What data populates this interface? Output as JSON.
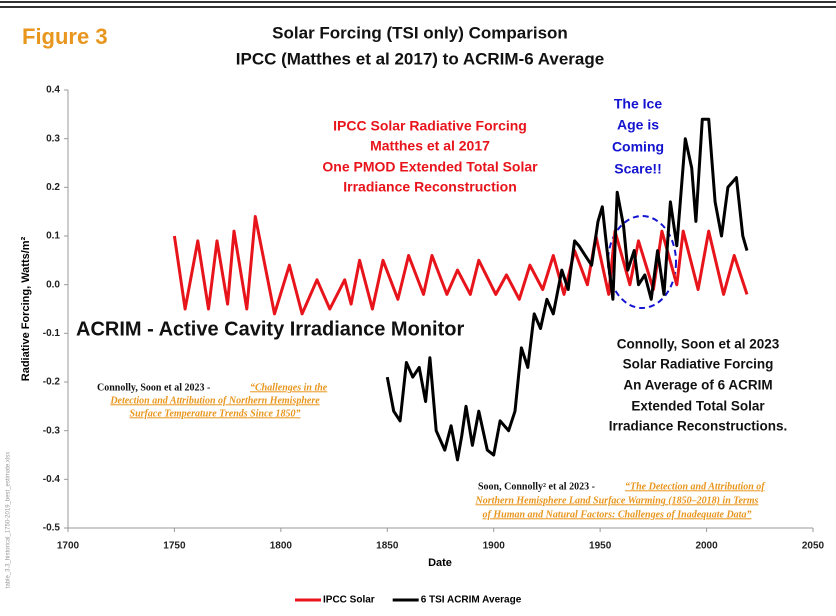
{
  "figure_label": "Figure 3",
  "chart_data": {
    "type": "line",
    "title": [
      "Solar Forcing (TSI only) Comparison",
      "IPCC (Matthes et al 2017) to ACRIM-6 Average"
    ],
    "x_label": "Date",
    "y_label": "Radiative Forcing, Watts/m²",
    "xlim": [
      1700,
      2050
    ],
    "xticks": [
      1700,
      1750,
      1800,
      1850,
      1900,
      1950,
      2000,
      2050
    ],
    "ylim": [
      -0.5,
      0.4
    ],
    "yticks": [
      0.4,
      0.3,
      0.2,
      0.1,
      {
        "value": 0,
        "label": "0.0"
      },
      -0.1,
      -0.2,
      -0.3,
      -0.4,
      -0.5
    ],
    "legend": "bottom",
    "series": [
      {
        "name": "IPCC Solar",
        "color": "#e8141b",
        "x": [
          1750,
          1755,
          1761,
          1766,
          1770,
          1775,
          1778,
          1784,
          1788,
          1797,
          1804,
          1810,
          1817,
          1823,
          1830,
          1833,
          1837,
          1843,
          1848,
          1855,
          1860,
          1867,
          1871,
          1878,
          1883,
          1889,
          1893,
          1901,
          1906,
          1912,
          1917,
          1923,
          1928,
          1933,
          1938,
          1944,
          1948,
          1954,
          1957,
          1964,
          1968,
          1975,
          1979,
          1986,
          1989,
          1996,
          2001,
          2008,
          2013,
          2019
        ],
        "values": [
          0.1,
          -0.05,
          0.09,
          -0.05,
          0.09,
          -0.04,
          0.11,
          -0.05,
          0.14,
          -0.06,
          0.04,
          -0.06,
          0.01,
          -0.05,
          0.01,
          -0.04,
          0.05,
          -0.05,
          0.05,
          -0.03,
          0.06,
          -0.02,
          0.06,
          -0.02,
          0.03,
          -0.02,
          0.05,
          -0.02,
          0.02,
          -0.03,
          0.04,
          -0.01,
          0.06,
          -0.02,
          0.07,
          0.0,
          0.1,
          -0.02,
          0.11,
          0.0,
          0.09,
          -0.01,
          0.11,
          0.0,
          0.11,
          -0.01,
          0.11,
          -0.02,
          0.06,
          -0.02
        ]
      },
      {
        "name": "6 TSI ACRIM Average",
        "color": "#000000",
        "x": [
          1850,
          1853,
          1856,
          1859,
          1862,
          1865,
          1868,
          1870,
          1873,
          1877,
          1880,
          1883,
          1885,
          1887,
          1890,
          1893,
          1897,
          1900,
          1903,
          1907,
          1910,
          1913,
          1916,
          1919,
          1922,
          1925,
          1928,
          1932,
          1935,
          1938,
          1940,
          1943,
          1946,
          1949,
          1951,
          1954,
          1956,
          1958,
          1961,
          1963,
          1966,
          1968,
          1971,
          1974,
          1977,
          1980,
          1983,
          1986,
          1990,
          1993,
          1995,
          1998,
          2001,
          2004,
          2007,
          2010,
          2014,
          2017,
          2019
        ],
        "values": [
          -0.19,
          -0.26,
          -0.28,
          -0.16,
          -0.19,
          -0.17,
          -0.24,
          -0.15,
          -0.3,
          -0.34,
          -0.29,
          -0.36,
          -0.31,
          -0.25,
          -0.33,
          -0.26,
          -0.34,
          -0.35,
          -0.28,
          -0.3,
          -0.26,
          -0.13,
          -0.17,
          -0.06,
          -0.09,
          -0.03,
          -0.06,
          0.03,
          -0.01,
          0.09,
          0.08,
          0.06,
          0.04,
          0.13,
          0.16,
          0.04,
          -0.03,
          0.19,
          0.12,
          0.03,
          0.07,
          0.0,
          0.02,
          -0.03,
          0.07,
          -0.02,
          0.17,
          0.08,
          0.3,
          0.24,
          0.13,
          0.34,
          0.34,
          0.17,
          0.1,
          0.2,
          0.22,
          0.1,
          0.07
        ]
      }
    ],
    "annotations": {
      "ipcc": [
        "IPCC Solar Radiative Forcing",
        "Matthes et al 2017",
        "One PMOD Extended Total Solar",
        "Irradiance Reconstruction"
      ],
      "ice_age": [
        "The Ice",
        "Age is",
        "Coming",
        "Scare!!"
      ],
      "acrim": "ACRIM - Active Cavity Irradiance Monitor",
      "connolly": [
        "Connolly, Soon et al 2023",
        "Solar Radiative Forcing",
        "An Average of 6 ACRIM",
        "Extended Total Solar",
        "Irradiance Reconstructions."
      ],
      "citation_1": {
        "prefix": "Connolly, Soon et al 2023 - ",
        "link": [
          "“Challenges in the",
          "Detection and Attribution of Northern Hemisphere",
          "Surface Temperature Trends Since 1850”"
        ]
      },
      "citation_2": {
        "prefix": "Soon, Connolly² et al 2023 - ",
        "link": [
          "“The Detection and Attribution of",
          "Northern Hemisphere Land Surface Warming (1850–2018) in Terms",
          "of Human and Natural Factors: Challenges of Inadequate Data”"
        ]
      }
    },
    "source_file": "table_3.3_historical_1750-2019_best_estimate.xlsx"
  }
}
